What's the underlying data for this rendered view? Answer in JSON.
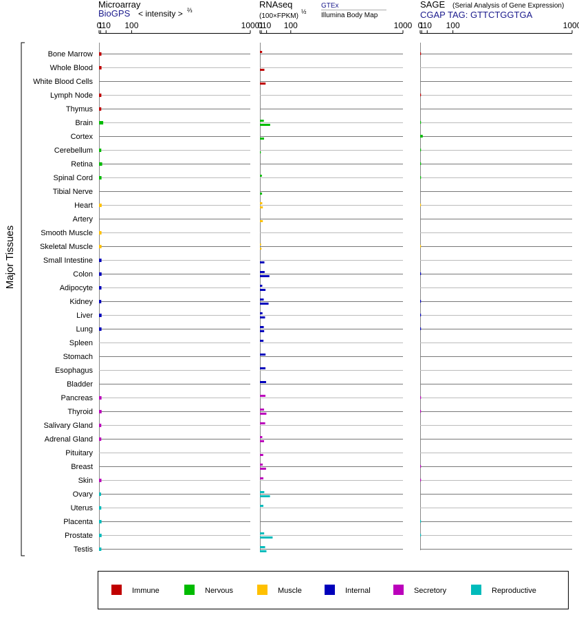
{
  "panels": {
    "microarray": {
      "title": "Microarray",
      "source": "BioGPS",
      "unit_text": "< intensity >",
      "unit_exponent": "⅔",
      "ticks": [
        "0",
        "1",
        "10",
        "100",
        "1000"
      ]
    },
    "rnaseq": {
      "title": "RNAseq",
      "unit_text": "(100×FPKM)",
      "unit_exponent": "½",
      "gtex_label": "GTEx",
      "illumina_label": "Illumina Body Map",
      "ticks": [
        "0",
        "1",
        "10",
        "100",
        "1000"
      ]
    },
    "sage": {
      "title": "SAGE",
      "subtitle": "(Serial Analysis of Gene Expression)",
      "tag_label": "CGAP TAG: GTTCTGGTGA",
      "ticks": [
        "0",
        "1",
        "10",
        "100",
        "1000"
      ]
    }
  },
  "group_label": "Major Tissues",
  "legend": [
    {
      "name": "Immune",
      "color": "#c00000"
    },
    {
      "name": "Nervous",
      "color": "#00bb00"
    },
    {
      "name": "Muscle",
      "color": "#ffc000"
    },
    {
      "name": "Internal",
      "color": "#0000bb"
    },
    {
      "name": "Secretory",
      "color": "#bb00bb"
    },
    {
      "name": "Reproductive",
      "color": "#00bbbb"
    }
  ],
  "chart_data": {
    "type": "bar",
    "x_scale": "x^(2/3)",
    "x_range": [
      0,
      1000
    ],
    "categories": [
      "Bone Marrow",
      "Whole Blood",
      "White Blood Cells",
      "Lymph Node",
      "Thymus",
      "Brain",
      "Cortex",
      "Cerebellum",
      "Retina",
      "Spinal Cord",
      "Tibial Nerve",
      "Heart",
      "Artery",
      "Smooth Muscle",
      "Skeletal Muscle",
      "Small Intestine",
      "Colon",
      "Adipocyte",
      "Kidney",
      "Liver",
      "Lung",
      "Spleen",
      "Stomach",
      "Esophagus",
      "Bladder",
      "Pancreas",
      "Thyroid",
      "Salivary Gland",
      "Adrenal Gland",
      "Pituitary",
      "Breast",
      "Skin",
      "Ovary",
      "Uterus",
      "Placenta",
      "Prostate",
      "Testis"
    ],
    "system": [
      "Immune",
      "Immune",
      "Immune",
      "Immune",
      "Immune",
      "Nervous",
      "Nervous",
      "Nervous",
      "Nervous",
      "Nervous",
      "Nervous",
      "Muscle",
      "Muscle",
      "Muscle",
      "Muscle",
      "Internal",
      "Internal",
      "Internal",
      "Internal",
      "Internal",
      "Internal",
      "Internal",
      "Internal",
      "Internal",
      "Internal",
      "Secretory",
      "Secretory",
      "Secretory",
      "Secretory",
      "Secretory",
      "Secretory",
      "Secretory",
      "Reproductive",
      "Reproductive",
      "Reproductive",
      "Reproductive",
      "Reproductive"
    ],
    "microarray": [
      2.0,
      2.1,
      null,
      1.9,
      1.8,
      4.6,
      null,
      1.8,
      3.0,
      2.1,
      null,
      2.3,
      null,
      2.1,
      2.1,
      2.1,
      2.2,
      2.0,
      1.8,
      2.2,
      2.1,
      null,
      null,
      null,
      null,
      2.1,
      2.2,
      1.8,
      1.8,
      null,
      null,
      2.0,
      1.5,
      1.8,
      2.1,
      2.2,
      1.9
    ],
    "rnaseq_gtex": [
      1.9,
      null,
      null,
      null,
      null,
      4.5,
      null,
      null,
      null,
      1.6,
      null,
      2.1,
      null,
      null,
      0.7,
      null,
      6.0,
      2.1,
      4.3,
      2.4,
      4.4,
      3.9,
      7.8,
      7.6,
      8.9,
      7.6,
      4.9,
      7.0,
      2.1,
      null,
      2.8,
      3.7,
      5.3,
      3.7,
      null,
      5.1,
      6.9
    ],
    "rnaseq_ibm": [
      null,
      5.5,
      7.9,
      null,
      null,
      19.1,
      4.9,
      0.5,
      null,
      null,
      1.8,
      2.9,
      2.9,
      null,
      1.1,
      5.5,
      17.0,
      7.7,
      14.8,
      6.8,
      5.1,
      null,
      null,
      null,
      null,
      null,
      9.6,
      null,
      4.9,
      3.5,
      8.8,
      null,
      18.6,
      null,
      null,
      26.4,
      9.7
    ],
    "sage": [
      0.02,
      null,
      null,
      0.01,
      null,
      0.01,
      2.2,
      0.01,
      0.02,
      0.02,
      null,
      0.01,
      null,
      null,
      0.01,
      null,
      0.02,
      null,
      0.02,
      0.02,
      0.02,
      null,
      null,
      null,
      null,
      0.02,
      0.02,
      null,
      null,
      null,
      0.02,
      0.02,
      null,
      null,
      0.01,
      0.01,
      null
    ]
  }
}
